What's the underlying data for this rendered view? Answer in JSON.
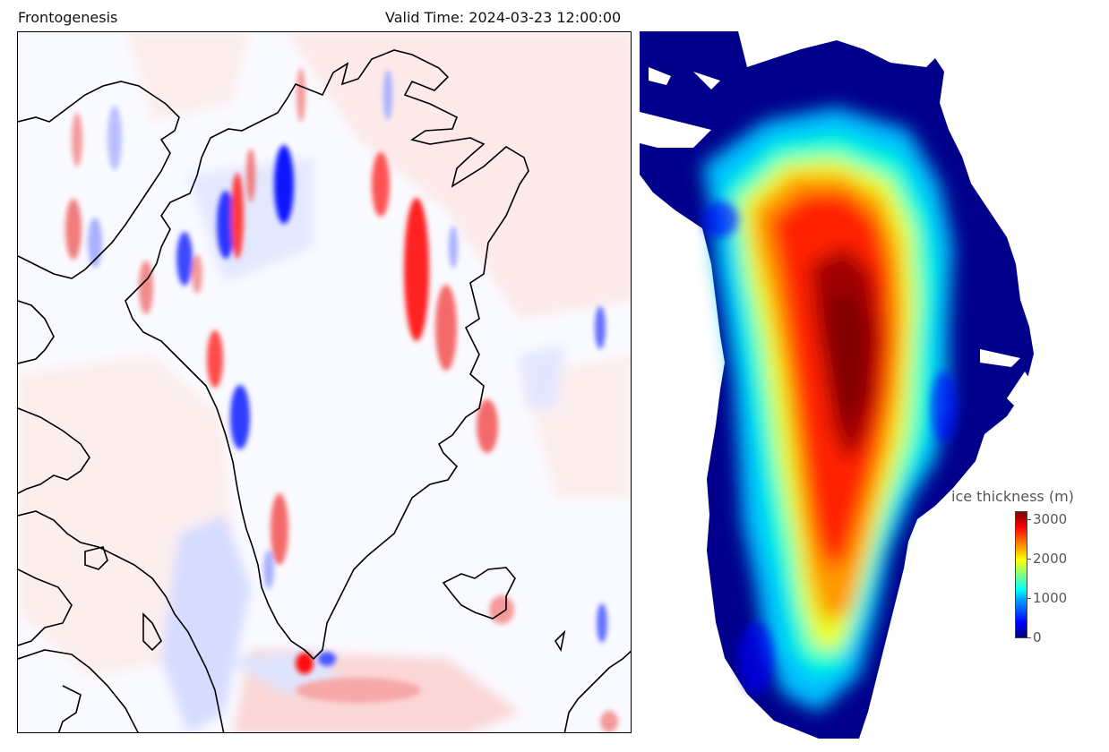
{
  "left_panel": {
    "title": "Frontogenesis",
    "valid_time": "Valid Time: 2024-03-23 12:00:00",
    "colors": {
      "positive": "#ff0000",
      "negative": "#0000ff",
      "background": "#f8f9ff",
      "coast": "#000000"
    }
  },
  "right_panel": {
    "colorbar": {
      "title": "ice thickness (m)",
      "ticks": [
        "3000",
        "2000",
        "1000",
        "0"
      ],
      "colormap": "jet"
    }
  }
}
